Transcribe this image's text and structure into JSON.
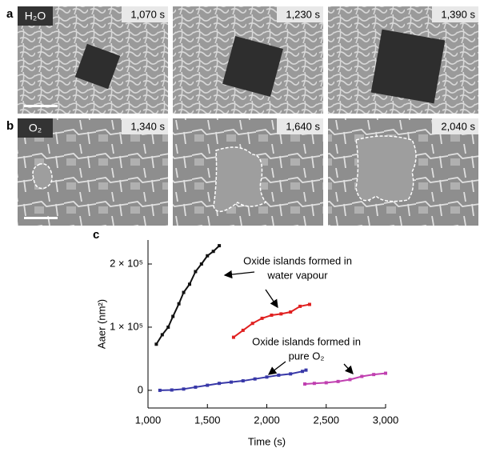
{
  "figure": {
    "rows": [
      {
        "label": "a",
        "condition": "H₂O",
        "times": [
          "1,070 s",
          "1,230 s",
          "1,390 s"
        ]
      },
      {
        "label": "b",
        "condition": "O₂",
        "times": [
          "1,340 s",
          "1,640 s",
          "2,040 s"
        ]
      }
    ]
  },
  "chart_data": {
    "type": "line",
    "panel_label": "c",
    "x_label": "Time (s)",
    "y_label": "Aaer (nm²)",
    "xlim": [
      1000,
      3000
    ],
    "ylim": [
      -28000,
      238000
    ],
    "xticks": [
      {
        "value": 1000,
        "label": "1,000"
      },
      {
        "value": 1500,
        "label": "1,500"
      },
      {
        "value": 2000,
        "label": "2,000"
      },
      {
        "value": 2500,
        "label": "2,500"
      },
      {
        "value": 3000,
        "label": "3,000"
      }
    ],
    "yticks": [
      0,
      {
        "value": 100000,
        "label": "1 × 10⁵"
      },
      {
        "value": 200000,
        "label": "2 × 10⁵"
      }
    ],
    "annotations": [
      {
        "lines": [
          "Oxide islands formed in",
          "water vapour"
        ]
      },
      {
        "lines": [
          "Oxide islands formed in",
          "pure O₂"
        ]
      }
    ],
    "series": [
      {
        "color": "#111111",
        "x": [
          1070,
          1120,
          1170,
          1210,
          1260,
          1300,
          1350,
          1400,
          1450,
          1500,
          1550,
          1600
        ],
        "values": [
          73000,
          88000,
          100000,
          117000,
          137000,
          155000,
          168000,
          188000,
          200000,
          213000,
          220000,
          229000
        ]
      },
      {
        "color": "#e02020",
        "x": [
          1720,
          1800,
          1880,
          1960,
          2040,
          2120,
          2200,
          2280,
          2360
        ],
        "values": [
          84000,
          95000,
          106000,
          114000,
          119000,
          121000,
          124000,
          133000,
          136000
        ]
      },
      {
        "color": "#3838a8",
        "x": [
          1100,
          1200,
          1300,
          1400,
          1500,
          1600,
          1700,
          1800,
          1900,
          2000,
          2100,
          2200,
          2300,
          2330
        ],
        "values": [
          0,
          500,
          2000,
          5000,
          8000,
          11000,
          13000,
          15000,
          18000,
          21000,
          24000,
          26000,
          30000,
          32000
        ]
      },
      {
        "color": "#c040b0",
        "x": [
          2320,
          2400,
          2500,
          2600,
          2700,
          2800,
          2900,
          3000
        ],
        "values": [
          10000,
          11000,
          12000,
          14000,
          17000,
          22000,
          25000,
          27000
        ]
      }
    ]
  }
}
